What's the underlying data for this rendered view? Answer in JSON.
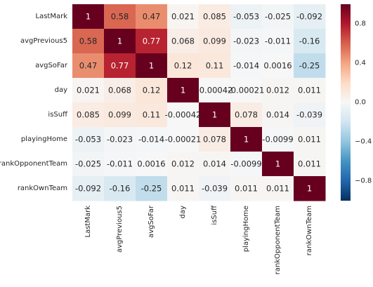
{
  "chart_data": {
    "type": "heatmap",
    "title": "",
    "xlabel": "",
    "ylabel": "",
    "labels": [
      "LastMark",
      "avgPrevious5",
      "avgSoFar",
      "day",
      "isSuff",
      "playingHome",
      "rankOpponentTeam",
      "rankOwnTeam"
    ],
    "matrix": [
      [
        1,
        0.58,
        0.47,
        0.021,
        0.085,
        -0.053,
        -0.025,
        -0.092
      ],
      [
        0.58,
        1,
        0.77,
        0.068,
        0.099,
        -0.023,
        -0.011,
        -0.16
      ],
      [
        0.47,
        0.77,
        1,
        0.12,
        0.11,
        -0.014,
        0.0016,
        -0.25
      ],
      [
        0.021,
        0.068,
        0.12,
        1,
        -0.00042,
        -0.00021,
        0.012,
        0.011
      ],
      [
        0.085,
        0.099,
        0.11,
        -0.00042,
        1,
        0.078,
        0.014,
        -0.039
      ],
      [
        -0.053,
        -0.023,
        -0.014,
        -0.00021,
        0.078,
        1,
        -0.0099,
        0.011
      ],
      [
        -0.025,
        -0.011,
        0.0016,
        0.012,
        0.014,
        -0.0099,
        1,
        0.011
      ],
      [
        -0.092,
        -0.16,
        -0.25,
        0.011,
        -0.039,
        0.011,
        0.011,
        1
      ]
    ],
    "annotations": [
      [
        "1",
        "0.58",
        "0.47",
        "0.021",
        "0.085",
        "-0.053",
        "-0.025",
        "-0.092"
      ],
      [
        "0.58",
        "1",
        "0.77",
        "0.068",
        "0.099",
        "-0.023",
        "-0.011",
        "-0.16"
      ],
      [
        "0.47",
        "0.77",
        "1",
        "0.12",
        "0.11",
        "-0.014",
        "0.0016",
        "-0.25"
      ],
      [
        "0.021",
        "0.068",
        "0.12",
        "1",
        "-0.00042",
        "-0.00021",
        "0.012",
        "0.011"
      ],
      [
        "0.085",
        "0.099",
        "0.11",
        "-0.00042",
        "1",
        "0.078",
        "0.014",
        "-0.039"
      ],
      [
        "-0.053",
        "-0.023",
        "-0.014",
        "-0.00021",
        "0.078",
        "1",
        "-0.0099",
        "0.011"
      ],
      [
        "-0.025",
        "-0.011",
        "0.0016",
        "0.012",
        "0.014",
        "-0.0099",
        "1",
        "0.011"
      ],
      [
        "-0.092",
        "-0.16",
        "-0.25",
        "0.011",
        "-0.039",
        "0.011",
        "0.011",
        "1"
      ]
    ],
    "colorbar": {
      "range": [
        -1,
        1
      ],
      "ticks": [
        -0.8,
        -0.4,
        0.0,
        0.4,
        0.8
      ],
      "tick_labels": [
        "−0.8",
        "−0.4",
        "0.0",
        "0.4",
        "0.8"
      ]
    },
    "colormap": {
      "name": "RdBu_r",
      "stops": [
        "#053061",
        "#2166ac",
        "#4393c3",
        "#92c5de",
        "#d1e5f0",
        "#f7f7f7",
        "#fddbc7",
        "#f4a582",
        "#d6604d",
        "#b2182b",
        "#67001f"
      ]
    },
    "grid": false,
    "legend": "colorbar-right"
  }
}
